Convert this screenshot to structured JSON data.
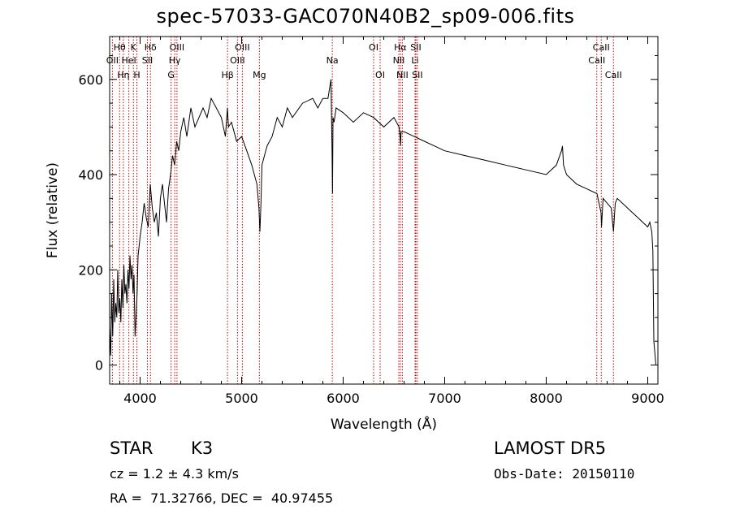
{
  "figure": {
    "title": "spec-57033-GAC070N40B2_sp09-006.fits",
    "info": {
      "object_type": "STAR",
      "subclass": "K3",
      "survey": "LAMOST DR5",
      "cz": "cz = 1.2 ± 4.3 km/s",
      "obs_date": "Obs-Date: 20150110",
      "coords": "RA =  71.32766, DEC =  40.97455"
    }
  },
  "chart_data": {
    "type": "line",
    "title": "spec-57033-GAC070N40B2_sp09-006.fits",
    "xlabel": "Wavelength (Å)",
    "ylabel": "Flux (relative)",
    "xlim": [
      3700,
      9100
    ],
    "ylim": [
      -40,
      690
    ],
    "xticks": [
      4000,
      5000,
      6000,
      7000,
      8000,
      9000
    ],
    "yticks": [
      0,
      200,
      400,
      600
    ],
    "grid": false,
    "colors": {
      "spectrum": "#000000",
      "lines": "#cc0000"
    },
    "series": [
      {
        "x": [
          3700,
          3710,
          3720,
          3730,
          3740,
          3750,
          3760,
          3770,
          3780,
          3790,
          3800,
          3810,
          3820,
          3830,
          3840,
          3850,
          3860,
          3870,
          3880,
          3890,
          3900,
          3910,
          3920,
          3930,
          3940,
          3950,
          3960,
          3970,
          3980,
          3990,
          4000,
          4020,
          4040,
          4060,
          4080,
          4100,
          4120,
          4140,
          4160,
          4180,
          4200,
          4220,
          4240,
          4260,
          4280,
          4300,
          4320,
          4340,
          4360,
          4380,
          4400,
          4430,
          4460,
          4500,
          4540,
          4580,
          4620,
          4660,
          4700,
          4750,
          4800,
          4840,
          4860,
          4870,
          4900,
          4950,
          5000,
          5050,
          5100,
          5150,
          5170,
          5180,
          5190,
          5200,
          5250,
          5300,
          5350,
          5400,
          5450,
          5500,
          5600,
          5700,
          5750,
          5800,
          5850,
          5880,
          5890,
          5895,
          5900,
          5910,
          5930,
          6000,
          6100,
          6200,
          6300,
          6400,
          6500,
          6550,
          6560,
          6565,
          6570,
          6600,
          6700,
          6800,
          6900,
          7000,
          7200,
          7400,
          7600,
          7800,
          8000,
          8100,
          8150,
          8160,
          8170,
          8200,
          8300,
          8400,
          8500,
          8540,
          8545,
          8560,
          8600,
          8640,
          8662,
          8680,
          8700,
          8800,
          8900,
          9000,
          9020,
          9040,
          9050,
          9060,
          9080
        ],
        "values": [
          80,
          20,
          150,
          60,
          180,
          90,
          130,
          100,
          200,
          110,
          140,
          90,
          180,
          120,
          210,
          150,
          170,
          130,
          200,
          160,
          230,
          180,
          210,
          150,
          190,
          60,
          100,
          150,
          230,
          250,
          270,
          300,
          340,
          310,
          290,
          380,
          330,
          300,
          320,
          270,
          350,
          380,
          340,
          300,
          370,
          400,
          440,
          420,
          470,
          450,
          490,
          520,
          480,
          540,
          500,
          520,
          540,
          520,
          560,
          540,
          520,
          480,
          540,
          500,
          510,
          470,
          480,
          450,
          420,
          380,
          330,
          280,
          340,
          420,
          460,
          480,
          520,
          500,
          540,
          520,
          550,
          560,
          540,
          560,
          560,
          600,
          450,
          360,
          520,
          510,
          540,
          530,
          510,
          530,
          520,
          500,
          520,
          500,
          480,
          460,
          490,
          490,
          480,
          470,
          460,
          450,
          440,
          430,
          420,
          410,
          400,
          420,
          450,
          460,
          420,
          400,
          380,
          370,
          360,
          320,
          290,
          350,
          340,
          330,
          280,
          340,
          350,
          330,
          310,
          290,
          300,
          280,
          240,
          50,
          0
        ]
      }
    ],
    "line_marks": [
      {
        "label": "Hθ",
        "x": 3798,
        "row": 1
      },
      {
        "label": "OII",
        "x": 3727,
        "row": 2
      },
      {
        "label": "Hη",
        "x": 3835,
        "row": 3
      },
      {
        "label": "K",
        "x": 3934,
        "row": 1
      },
      {
        "label": "HeI",
        "x": 3889,
        "row": 2
      },
      {
        "label": "H",
        "x": 3968,
        "row": 3
      },
      {
        "label": "Hδ",
        "x": 4102,
        "row": 1
      },
      {
        "label": "SII",
        "x": 4072,
        "row": 2
      },
      {
        "label": "OIII",
        "x": 4363,
        "row": 1
      },
      {
        "label": "Hγ",
        "x": 4341,
        "row": 2
      },
      {
        "label": "G",
        "x": 4305,
        "row": 3
      },
      {
        "label": "OIII",
        "x": 5007,
        "row": 1
      },
      {
        "label": "OIII",
        "x": 4959,
        "row": 2
      },
      {
        "label": "Hβ",
        "x": 4861,
        "row": 3
      },
      {
        "label": "Mg",
        "x": 5175,
        "row": 3
      },
      {
        "label": "Na",
        "x": 5893,
        "row": 2
      },
      {
        "label": "OI",
        "x": 6300,
        "row": 1
      },
      {
        "label": "OI",
        "x": 6364,
        "row": 3
      },
      {
        "label": "Hα",
        "x": 6563,
        "row": 1
      },
      {
        "label": "NII",
        "x": 6548,
        "row": 2
      },
      {
        "label": "NII",
        "x": 6583,
        "row": 3
      },
      {
        "label": "SII",
        "x": 6716,
        "row": 1
      },
      {
        "label": "Li",
        "x": 6708,
        "row": 2
      },
      {
        "label": "SII",
        "x": 6731,
        "row": 3
      },
      {
        "label": "CaII",
        "x": 8542,
        "row": 1
      },
      {
        "label": "CaII",
        "x": 8498,
        "row": 2
      },
      {
        "label": "CaII",
        "x": 8662,
        "row": 3
      }
    ]
  }
}
